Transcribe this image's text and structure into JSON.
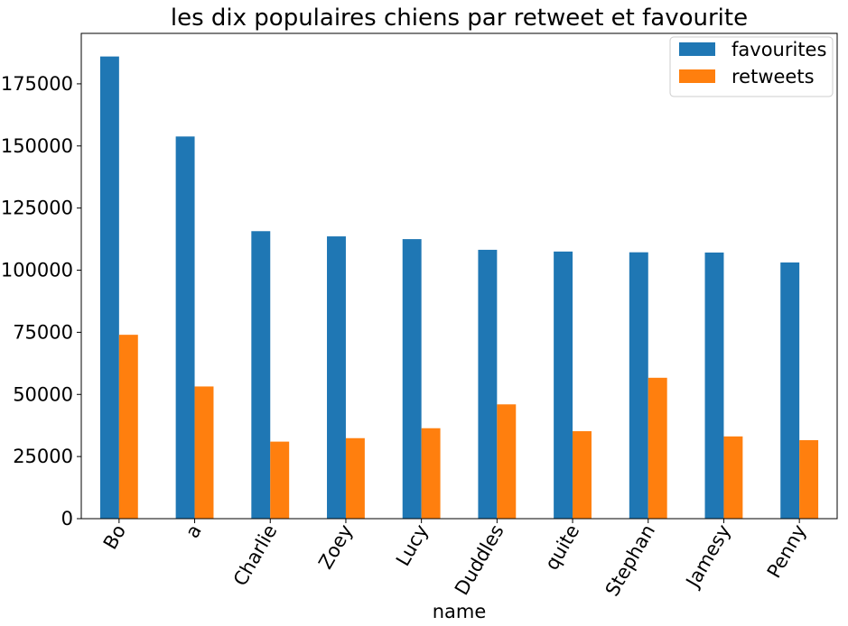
{
  "chart_data": {
    "type": "bar",
    "title": "les dix populaires chiens par retweet et favourite",
    "xlabel": "name",
    "ylabel": "",
    "categories": [
      "Bo",
      "a",
      "Charlie",
      "Zoey",
      "Lucy",
      "Duddles",
      "quite",
      "Stephan",
      "Jamesy",
      "Penny"
    ],
    "series": [
      {
        "name": "favourites",
        "color": "#1f77b4",
        "values": [
          186000,
          153800,
          115700,
          113600,
          112500,
          108200,
          107500,
          107200,
          107100,
          103100
        ]
      },
      {
        "name": "retweets",
        "color": "#ff7f0e",
        "values": [
          74000,
          53200,
          31000,
          32400,
          36400,
          46000,
          35200,
          56700,
          33100,
          31600
        ]
      }
    ],
    "ylim": [
      0,
      195300
    ],
    "yticks": [
      0,
      25000,
      50000,
      75000,
      100000,
      125000,
      150000,
      175000
    ],
    "ytick_labels": [
      "0",
      "25000",
      "50000",
      "75000",
      "100000",
      "125000",
      "150000",
      "175000"
    ],
    "grid": false,
    "legend_position": "top-right"
  }
}
